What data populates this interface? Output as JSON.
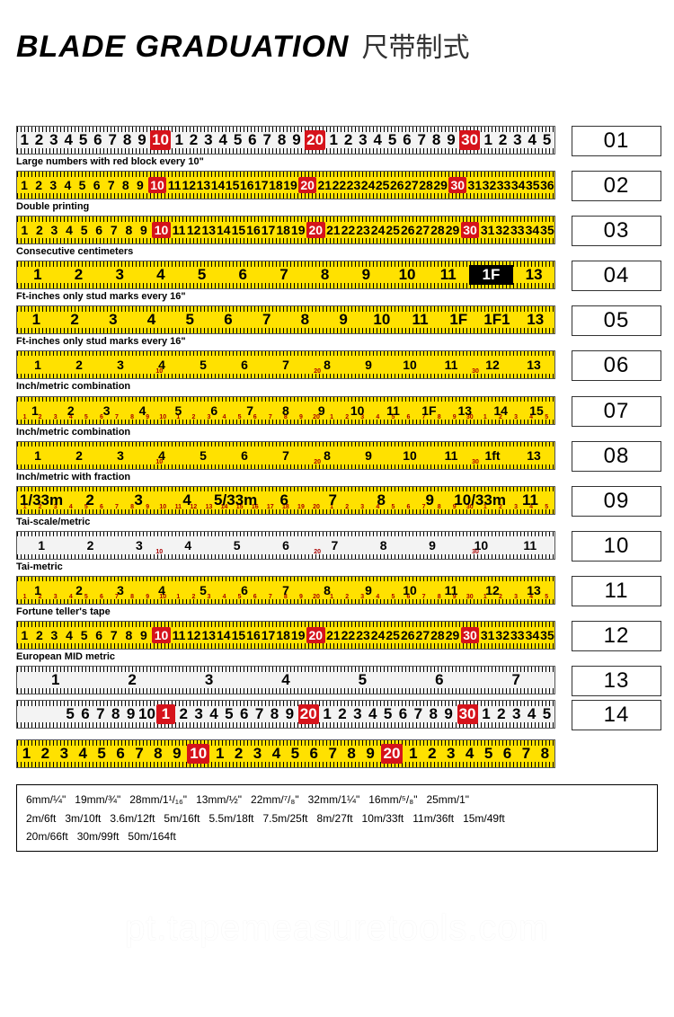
{
  "header": {
    "title_en": "BLADE GRADUATION",
    "title_cn": "尺带制式",
    "title_en_fontsize": 34,
    "title_cn_fontsize": 30
  },
  "colors": {
    "tape_yellow": "#ffe100",
    "tape_white": "#f3f3f3",
    "red_block": "#d6131b",
    "text_black": "#000000",
    "red_text": "#c00000",
    "border": "#333333"
  },
  "rows": [
    {
      "id": "01",
      "bg": "white",
      "caption": "Large numbers with red block every 10\"",
      "marks": [
        "1",
        "2",
        "3",
        "4",
        "5",
        "6",
        "7",
        "8",
        "9",
        "10",
        "1",
        "2",
        "3",
        "4",
        "5",
        "6",
        "7",
        "8",
        "9",
        "20",
        "1",
        "2",
        "3",
        "4",
        "5",
        "6",
        "7",
        "8",
        "9",
        "30",
        "1",
        "2",
        "3",
        "4",
        "5"
      ],
      "highlight_idx": [
        9,
        19,
        29
      ],
      "big": true
    },
    {
      "id": "02",
      "bg": "yellow",
      "caption": "Double printing",
      "marks": [
        "1",
        "2",
        "3",
        "4",
        "5",
        "6",
        "7",
        "8",
        "9",
        "10",
        "11",
        "12",
        "13",
        "14",
        "15",
        "16",
        "17",
        "18",
        "19",
        "20",
        "21",
        "22",
        "23",
        "24",
        "25",
        "26",
        "27",
        "28",
        "29",
        "30",
        "31",
        "32",
        "33",
        "34",
        "35",
        "36"
      ],
      "highlight_idx": [
        9,
        19,
        29
      ]
    },
    {
      "id": "03",
      "bg": "yellow",
      "caption": "Consecutive centimeters",
      "marks": [
        "1",
        "2",
        "3",
        "4",
        "5",
        "6",
        "7",
        "8",
        "9",
        "10",
        "11",
        "12",
        "13",
        "14",
        "15",
        "16",
        "17",
        "18",
        "19",
        "20",
        "21",
        "22",
        "23",
        "24",
        "25",
        "26",
        "27",
        "28",
        "29",
        "30",
        "31",
        "32",
        "33",
        "34",
        "35"
      ],
      "highlight_idx": [
        9,
        19,
        29
      ]
    },
    {
      "id": "04",
      "bg": "yellow",
      "caption": "Ft-inches only stud marks every 16\"",
      "marks": [
        "1",
        "2",
        "3",
        "4",
        "5",
        "6",
        "7",
        "8",
        "9",
        "10",
        "11",
        "1F",
        "13"
      ],
      "feet_box_idx": [
        11
      ],
      "big": true
    },
    {
      "id": "05",
      "bg": "yellow",
      "caption": "Ft-inches only stud marks every 16\"",
      "marks": [
        "1",
        "2",
        "3",
        "4",
        "5",
        "6",
        "7",
        "8",
        "9",
        "10",
        "11",
        "1F",
        "1F1",
        "13"
      ],
      "big": true
    },
    {
      "id": "06",
      "bg": "yellow",
      "caption": "Inch/metric combination",
      "marks": [
        "1",
        "2",
        "3",
        "4",
        "5",
        "6",
        "7",
        "8",
        "9",
        "10",
        "11",
        "12",
        "13"
      ],
      "sub": [
        "",
        "",
        "",
        "",
        "10",
        "",
        "",
        "",
        "",
        "20",
        "",
        "",
        "",
        "",
        "30",
        "",
        ""
      ]
    },
    {
      "id": "07",
      "bg": "yellow",
      "caption": "Inch/metric combination",
      "marks": [
        "1",
        "2",
        "3",
        "4",
        "5",
        "6",
        "7",
        "8",
        "9",
        "10",
        "11",
        "1F",
        "13",
        "14",
        "15"
      ],
      "sub": [
        "1",
        "2",
        "3",
        "4",
        "5",
        "6",
        "7",
        "8",
        "9",
        "10",
        "1",
        "2",
        "3",
        "4",
        "5",
        "6",
        "7",
        "8",
        "9",
        "20",
        "1",
        "2",
        "3",
        "4",
        "5",
        "6",
        "7",
        "8",
        "9",
        "30",
        "1",
        "2",
        "3",
        "4",
        "5"
      ]
    },
    {
      "id": "08",
      "bg": "yellow",
      "caption": "Inch/metric with fraction",
      "marks": [
        "1",
        "2",
        "3",
        "4",
        "5",
        "6",
        "7",
        "8",
        "9",
        "10",
        "11",
        "1ft",
        "13"
      ],
      "sub": [
        "",
        "",
        "",
        "",
        "10",
        "",
        "",
        "",
        "",
        "20",
        "",
        "",
        "",
        "",
        "30",
        "",
        ""
      ]
    },
    {
      "id": "09",
      "bg": "yellow",
      "caption": "Tai-scale/metric",
      "marks": [
        "1/33m",
        "2",
        "3",
        "4",
        "5/33m",
        "6",
        "7",
        "8",
        "9",
        "10/33m",
        "11"
      ],
      "big": true,
      "sub": [
        "1",
        "2",
        "3",
        "4",
        "5",
        "6",
        "7",
        "8",
        "9",
        "10",
        "11",
        "12",
        "13",
        "14",
        "15",
        "16",
        "17",
        "18",
        "19",
        "20",
        "1",
        "2",
        "3",
        "4",
        "5",
        "6",
        "7",
        "8",
        "9",
        "30",
        "1",
        "2",
        "3",
        "4",
        "5"
      ]
    },
    {
      "id": "10",
      "bg": "white",
      "caption": "Tai-metric",
      "marks": [
        "1",
        "2",
        "3",
        "4",
        "5",
        "6",
        "7",
        "8",
        "9",
        "10",
        "11"
      ],
      "sub": [
        "",
        "",
        "",
        "",
        "10",
        "",
        "",
        "",
        "",
        "20",
        "",
        "",
        "",
        "",
        "30",
        "",
        ""
      ]
    },
    {
      "id": "11",
      "bg": "yellow",
      "caption": "Fortune teller's tape",
      "marks": [
        "1",
        "2",
        "3",
        "4",
        "5",
        "6",
        "7",
        "8",
        "9",
        "10",
        "11",
        "12",
        "13"
      ],
      "sub": [
        "1",
        "2",
        "3",
        "4",
        "5",
        "6",
        "7",
        "8",
        "9",
        "10",
        "1",
        "2",
        "3",
        "4",
        "5",
        "6",
        "7",
        "8",
        "9",
        "20",
        "1",
        "2",
        "3",
        "4",
        "5",
        "6",
        "7",
        "8",
        "9",
        "30",
        "1",
        "2",
        "3",
        "4",
        "5"
      ]
    },
    {
      "id": "12",
      "bg": "yellow",
      "caption": "European MID metric",
      "marks": [
        "1",
        "2",
        "3",
        "4",
        "5",
        "6",
        "7",
        "8",
        "9",
        "10",
        "11",
        "12",
        "13",
        "14",
        "15",
        "16",
        "17",
        "18",
        "19",
        "20",
        "21",
        "22",
        "23",
        "24",
        "25",
        "26",
        "27",
        "28",
        "29",
        "30",
        "31",
        "32",
        "33",
        "34",
        "35"
      ],
      "highlight_idx": [
        9,
        19,
        29
      ]
    },
    {
      "id": "13",
      "bg": "white",
      "caption": "",
      "marks": [
        "1",
        "2",
        "3",
        "4",
        "5",
        "6",
        "7"
      ],
      "big": true
    },
    {
      "id": "14",
      "bg": "white",
      "caption": "",
      "marks": [
        "",
        "",
        "",
        "5",
        "6",
        "7",
        "8",
        "9",
        "10",
        "1",
        "2",
        "3",
        "4",
        "5",
        "6",
        "7",
        "8",
        "9",
        "20",
        "1",
        "2",
        "3",
        "4",
        "5",
        "6",
        "7",
        "8",
        "9",
        "30",
        "1",
        "2",
        "3",
        "4",
        "5"
      ],
      "highlight_idx": [
        9,
        18,
        28
      ],
      "big": true
    }
  ],
  "extra_tapes": [
    {
      "bg": "yellow",
      "marks": [
        "1",
        "2",
        "3",
        "4",
        "5",
        "6",
        "7",
        "8",
        "9",
        "10",
        "1",
        "2",
        "3",
        "4",
        "5",
        "6",
        "7",
        "8",
        "9",
        "20",
        "1",
        "2",
        "3",
        "4",
        "5",
        "6",
        "7",
        "8"
      ],
      "highlight_idx": [
        9,
        19
      ],
      "big": true
    }
  ],
  "spec_box": {
    "row1": [
      "6mm/¼\"",
      "19mm/¾\"",
      "28mm/1¹/₁₆\"",
      "13mm/½\"",
      "22mm/⁷/₈\"",
      "32mm/1¼\"",
      "16mm/⁵/₈\"",
      "25mm/1\""
    ],
    "row2": [
      "2m/6ft",
      "3m/10ft",
      "3.6m/12ft",
      "5m/16ft",
      "5.5m/18ft",
      "7.5m/25ft",
      "8m/27ft",
      "10m/33ft",
      "11m/36ft",
      "15m/49ft"
    ],
    "row3": [
      "20m/66ft",
      "30m/99ft",
      "50m/164ft"
    ]
  },
  "watermark": "pt.tapemeasuretools.com"
}
